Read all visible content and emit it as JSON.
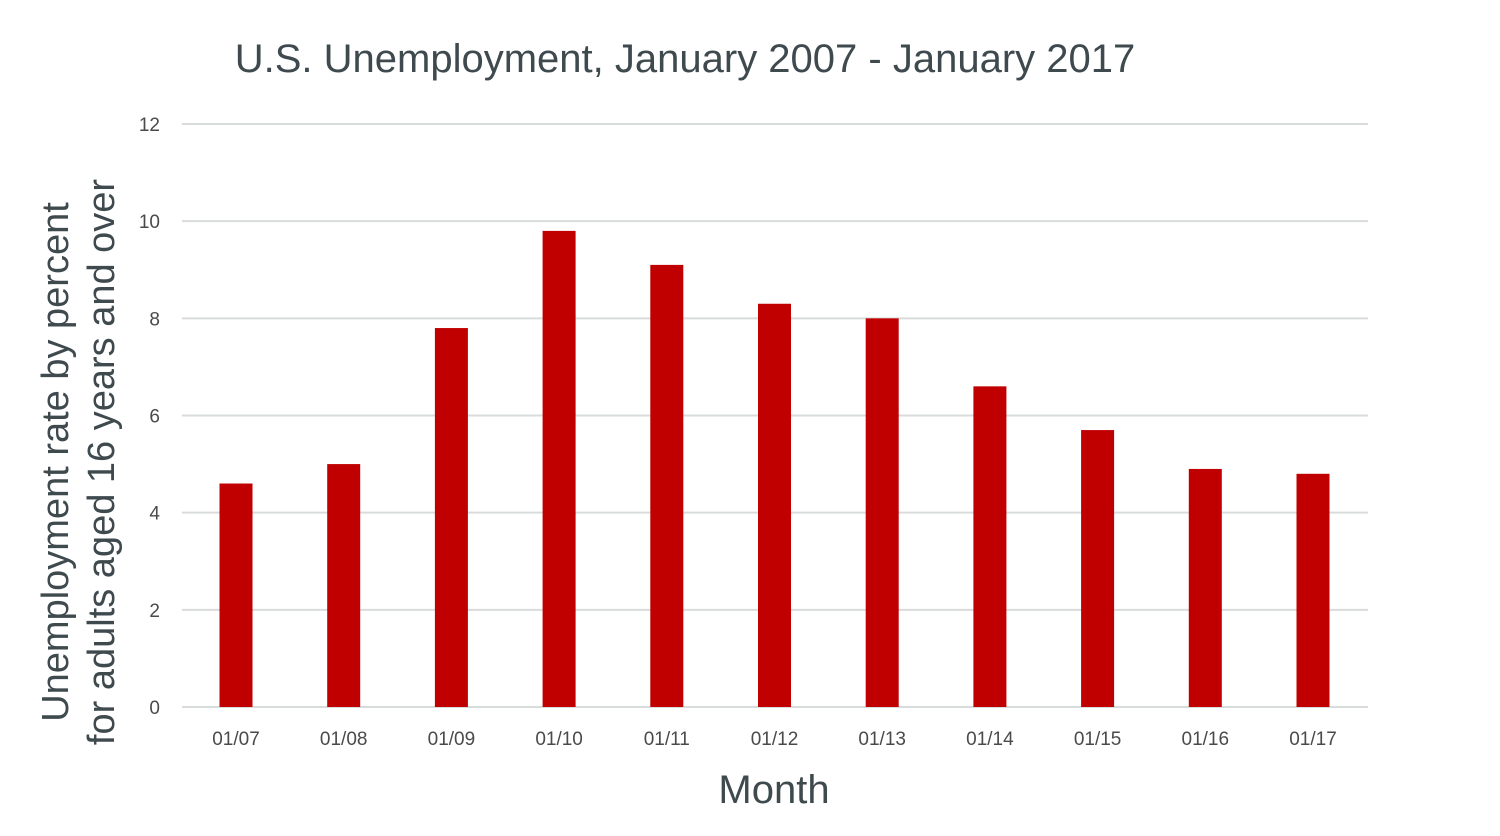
{
  "chart_data": {
    "type": "bar",
    "title": "U.S. Unemployment, January 2007 - January 2017",
    "xlabel": "Month",
    "ylabel_lines": [
      "Unemployment rate by percent",
      "for adults aged 16 years and over"
    ],
    "categories": [
      "01/07",
      "01/08",
      "01/09",
      "01/10",
      "01/11",
      "01/12",
      "01/13",
      "01/14",
      "01/15",
      "01/16",
      "01/17"
    ],
    "values": [
      4.6,
      5.0,
      7.8,
      9.8,
      9.1,
      8.3,
      8.0,
      6.6,
      5.7,
      4.9,
      4.8
    ],
    "ylim": [
      0,
      12
    ],
    "yticks": [
      0,
      2,
      4,
      6,
      8,
      10,
      12
    ],
    "grid": true,
    "legend": "none",
    "bar_color": "#c00000"
  }
}
